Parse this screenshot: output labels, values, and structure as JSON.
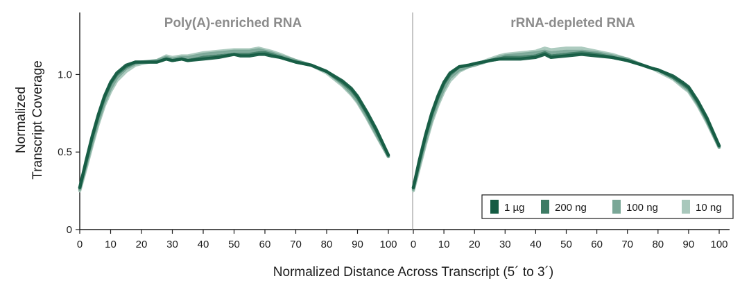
{
  "chart_data": {
    "type": "line",
    "xlabel": "Normalized Distance Across Transcript (5´ to 3´)",
    "ylabel": [
      "Normalized",
      "Transcript Coverage"
    ],
    "xlim": [
      0,
      100
    ],
    "ylim": [
      0,
      1.4
    ],
    "xticks": [
      "0",
      "10",
      "20",
      "30",
      "40",
      "50",
      "60",
      "70",
      "80",
      "90",
      "100"
    ],
    "yticks": [
      {
        "value": 0,
        "label": "0"
      },
      {
        "value": 0.5,
        "label": "0.5"
      },
      {
        "value": 1.0,
        "label": "1.0"
      }
    ],
    "grid": false,
    "legend": {
      "position": "bottom-right"
    },
    "colors": {
      "1 µg": "#155c43",
      "200 ng": "#3d7b64",
      "100 ng": "#7aa797",
      "10 ng": "#a9c8bc"
    },
    "panels": [
      {
        "title": "Poly(A)-enriched RNA",
        "x": [
          0,
          2,
          4,
          6,
          8,
          10,
          12,
          15,
          18,
          20,
          25,
          28,
          30,
          33,
          35,
          40,
          45,
          50,
          52,
          55,
          58,
          60,
          62,
          65,
          70,
          75,
          80,
          85,
          88,
          90,
          93,
          96,
          100
        ],
        "series": [
          {
            "name": "1 µg",
            "values": [
              0.27,
              0.44,
              0.6,
              0.74,
              0.86,
              0.95,
              1.01,
              1.06,
              1.08,
              1.08,
              1.08,
              1.1,
              1.09,
              1.1,
              1.09,
              1.1,
              1.11,
              1.13,
              1.12,
              1.12,
              1.13,
              1.13,
              1.12,
              1.11,
              1.08,
              1.06,
              1.02,
              0.96,
              0.91,
              0.86,
              0.76,
              0.65,
              0.48
            ]
          },
          {
            "name": "200 ng",
            "values": [
              0.27,
              0.43,
              0.59,
              0.73,
              0.85,
              0.94,
              1.0,
              1.05,
              1.08,
              1.08,
              1.08,
              1.1,
              1.09,
              1.1,
              1.09,
              1.11,
              1.12,
              1.13,
              1.13,
              1.13,
              1.14,
              1.14,
              1.13,
              1.11,
              1.08,
              1.06,
              1.02,
              0.95,
              0.9,
              0.85,
              0.75,
              0.64,
              0.48
            ]
          },
          {
            "name": "100 ng",
            "values": [
              0.26,
              0.41,
              0.56,
              0.7,
              0.82,
              0.91,
              0.98,
              1.04,
              1.07,
              1.08,
              1.09,
              1.11,
              1.1,
              1.11,
              1.11,
              1.13,
              1.14,
              1.15,
              1.15,
              1.15,
              1.16,
              1.15,
              1.14,
              1.12,
              1.09,
              1.06,
              1.02,
              0.94,
              0.88,
              0.83,
              0.73,
              0.62,
              0.47
            ]
          },
          {
            "name": "10 ng",
            "values": [
              0.25,
              0.39,
              0.54,
              0.68,
              0.8,
              0.89,
              0.96,
              1.02,
              1.06,
              1.07,
              1.09,
              1.12,
              1.11,
              1.12,
              1.12,
              1.14,
              1.15,
              1.16,
              1.16,
              1.16,
              1.17,
              1.16,
              1.15,
              1.13,
              1.09,
              1.06,
              1.01,
              0.93,
              0.87,
              0.82,
              0.72,
              0.61,
              0.47
            ]
          }
        ]
      },
      {
        "title": "rRNA-depleted RNA",
        "x": [
          0,
          2,
          4,
          6,
          8,
          10,
          12,
          15,
          18,
          20,
          25,
          28,
          30,
          35,
          40,
          43,
          45,
          50,
          55,
          60,
          65,
          70,
          75,
          78,
          80,
          85,
          88,
          90,
          93,
          96,
          100
        ],
        "series": [
          {
            "name": "1 µg",
            "values": [
              0.27,
              0.45,
              0.61,
              0.75,
              0.86,
              0.95,
              1.01,
              1.05,
              1.06,
              1.07,
              1.09,
              1.1,
              1.1,
              1.1,
              1.11,
              1.13,
              1.11,
              1.12,
              1.13,
              1.12,
              1.11,
              1.09,
              1.06,
              1.04,
              1.03,
              0.99,
              0.95,
              0.92,
              0.83,
              0.72,
              0.54
            ]
          },
          {
            "name": "200 ng",
            "values": [
              0.27,
              0.44,
              0.6,
              0.74,
              0.85,
              0.94,
              1.0,
              1.05,
              1.06,
              1.07,
              1.09,
              1.1,
              1.11,
              1.11,
              1.12,
              1.14,
              1.12,
              1.13,
              1.14,
              1.13,
              1.11,
              1.09,
              1.06,
              1.04,
              1.03,
              0.98,
              0.94,
              0.91,
              0.82,
              0.71,
              0.54
            ]
          },
          {
            "name": "100 ng",
            "values": [
              0.26,
              0.42,
              0.57,
              0.71,
              0.82,
              0.91,
              0.98,
              1.03,
              1.05,
              1.06,
              1.09,
              1.11,
              1.12,
              1.13,
              1.14,
              1.15,
              1.14,
              1.15,
              1.15,
              1.14,
              1.12,
              1.1,
              1.06,
              1.04,
              1.03,
              0.98,
              0.93,
              0.9,
              0.81,
              0.7,
              0.53
            ]
          },
          {
            "name": "10 ng",
            "values": [
              0.25,
              0.4,
              0.55,
              0.69,
              0.8,
              0.89,
              0.96,
              1.02,
              1.05,
              1.06,
              1.1,
              1.12,
              1.13,
              1.14,
              1.15,
              1.17,
              1.16,
              1.17,
              1.17,
              1.15,
              1.13,
              1.1,
              1.06,
              1.04,
              1.02,
              0.97,
              0.92,
              0.89,
              0.8,
              0.69,
              0.53
            ]
          }
        ]
      }
    ],
    "legend_entries": [
      "1 µg",
      "200 ng",
      "100 ng",
      "10 ng"
    ]
  }
}
